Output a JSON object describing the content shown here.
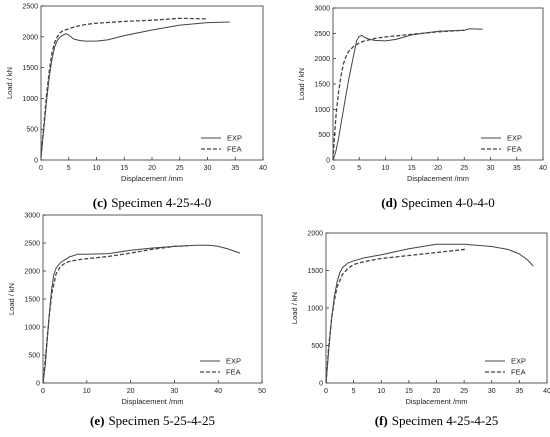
{
  "chart_data": [
    {
      "type": "line",
      "title": "",
      "caption_letter": "(c)",
      "caption_text": "Specimen 4-25-4-0",
      "xlabel": "Displacement /mm",
      "ylabel": "Load / kN",
      "xlim": [
        0,
        40
      ],
      "ylim": [
        0,
        2500
      ],
      "xticks": [
        0,
        5,
        10,
        15,
        20,
        25,
        30,
        35,
        40
      ],
      "yticks": [
        0,
        500,
        1000,
        1500,
        2000,
        2500
      ],
      "grid": false,
      "legend_position": "bottom-right",
      "series": [
        {
          "name": "EXP",
          "style": "solid",
          "x": [
            0,
            0.5,
            1,
            1.5,
            2,
            2.5,
            3,
            3.5,
            4,
            4.5,
            5,
            5.5,
            6,
            7,
            8,
            10,
            12,
            15,
            20,
            25,
            30,
            34
          ],
          "y": [
            50,
            500,
            950,
            1350,
            1650,
            1850,
            1950,
            2000,
            2030,
            2050,
            2030,
            1990,
            1960,
            1940,
            1930,
            1930,
            1950,
            2020,
            2110,
            2190,
            2230,
            2240
          ]
        },
        {
          "name": "FEA",
          "style": "dashed",
          "x": [
            0,
            0.5,
            1,
            1.5,
            2,
            2.5,
            3,
            3.5,
            4,
            5,
            6,
            8,
            10,
            15,
            20,
            25,
            30
          ],
          "y": [
            50,
            550,
            1050,
            1450,
            1750,
            1920,
            2010,
            2070,
            2100,
            2130,
            2160,
            2200,
            2220,
            2250,
            2270,
            2300,
            2290
          ]
        }
      ]
    },
    {
      "type": "line",
      "title": "",
      "caption_letter": "(d)",
      "caption_text": "Specimen 4-0-4-0",
      "xlabel": "Displacement /mm",
      "ylabel": "Load / kN",
      "xlim": [
        0,
        40
      ],
      "ylim": [
        0,
        3000
      ],
      "xticks": [
        0,
        5,
        10,
        15,
        20,
        25,
        30,
        35,
        40
      ],
      "yticks": [
        0,
        500,
        1000,
        1500,
        2000,
        2500,
        3000
      ],
      "grid": false,
      "legend_position": "bottom-right",
      "series": [
        {
          "name": "EXP",
          "style": "solid",
          "x": [
            0,
            0.5,
            1,
            2,
            3,
            4,
            4.5,
            5,
            5.5,
            6,
            7,
            8,
            10,
            12,
            15,
            20,
            25,
            26,
            28.5
          ],
          "y": [
            0,
            150,
            400,
            1000,
            1600,
            2100,
            2350,
            2440,
            2460,
            2420,
            2380,
            2360,
            2350,
            2380,
            2470,
            2540,
            2560,
            2590,
            2580
          ]
        },
        {
          "name": "FEA",
          "style": "dashed",
          "x": [
            0,
            0.3,
            0.6,
            1,
            1.5,
            2,
            2.5,
            3,
            4,
            5,
            6,
            8,
            10,
            15,
            20,
            25
          ],
          "y": [
            0,
            500,
            900,
            1300,
            1650,
            1900,
            2050,
            2150,
            2250,
            2310,
            2350,
            2400,
            2430,
            2480,
            2530,
            2560
          ]
        }
      ]
    },
    {
      "type": "line",
      "title": "",
      "caption_letter": "(e)",
      "caption_text": "Specimen 5-25-4-25",
      "xlabel": "Displacement /mm",
      "ylabel": "Load / kN",
      "xlim": [
        0,
        50
      ],
      "ylim": [
        0,
        3000
      ],
      "xticks": [
        0,
        10,
        20,
        30,
        40,
        50
      ],
      "yticks": [
        0,
        500,
        1000,
        1500,
        2000,
        2500,
        3000
      ],
      "grid": false,
      "legend_position": "bottom-right",
      "series": [
        {
          "name": "EXP",
          "style": "solid",
          "x": [
            0,
            0.5,
            1,
            1.5,
            2,
            2.5,
            3,
            4,
            5,
            6,
            8,
            10,
            15,
            20,
            25,
            30,
            35,
            38,
            40,
            42,
            45
          ],
          "y": [
            0,
            300,
            800,
            1300,
            1700,
            1950,
            2050,
            2150,
            2200,
            2250,
            2300,
            2300,
            2310,
            2370,
            2410,
            2440,
            2460,
            2460,
            2440,
            2400,
            2320
          ]
        },
        {
          "name": "FEA",
          "style": "dashed",
          "x": [
            0,
            0.5,
            1,
            1.5,
            2,
            3,
            4,
            5,
            6,
            8,
            10,
            15,
            20,
            25,
            30,
            33
          ],
          "y": [
            0,
            400,
            850,
            1250,
            1600,
            1950,
            2080,
            2140,
            2170,
            2200,
            2220,
            2260,
            2320,
            2390,
            2440,
            2450
          ]
        }
      ]
    },
    {
      "type": "line",
      "title": "",
      "caption_letter": "(f)",
      "caption_text": "Specimen 4-25-4-25",
      "xlabel": "Displacement /mm",
      "ylabel": "Load / kN",
      "xlim": [
        0,
        40
      ],
      "ylim": [
        0,
        2000
      ],
      "xticks": [
        0,
        5,
        10,
        15,
        20,
        25,
        30,
        35,
        40
      ],
      "yticks": [
        0,
        500,
        1000,
        1500,
        2000
      ],
      "grid": false,
      "legend_position": "bottom-right",
      "series": [
        {
          "name": "EXP",
          "style": "solid",
          "x": [
            0,
            0.5,
            1,
            1.5,
            2,
            2.5,
            3,
            4,
            5,
            7,
            10,
            15,
            20,
            25,
            30,
            33,
            35,
            36.5,
            37.5
          ],
          "y": [
            0,
            450,
            850,
            1150,
            1350,
            1470,
            1540,
            1600,
            1630,
            1670,
            1710,
            1790,
            1850,
            1850,
            1820,
            1780,
            1720,
            1640,
            1560
          ]
        },
        {
          "name": "FEA",
          "style": "dashed",
          "x": [
            0,
            0.5,
            1,
            1.5,
            2,
            3,
            4,
            5,
            7,
            10,
            15,
            20,
            25,
            25.2
          ],
          "y": [
            0,
            500,
            850,
            1100,
            1280,
            1450,
            1530,
            1580,
            1620,
            1660,
            1700,
            1740,
            1780,
            1820
          ]
        }
      ]
    }
  ]
}
